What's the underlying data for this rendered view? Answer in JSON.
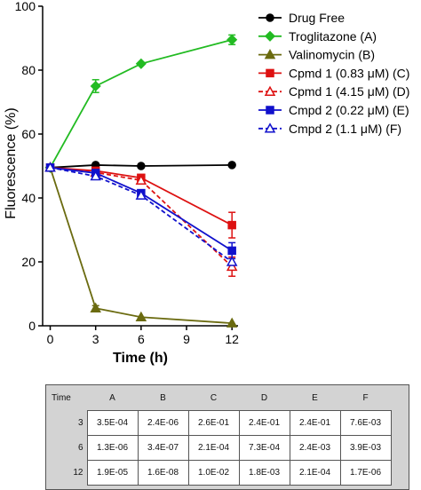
{
  "chart_data": {
    "type": "line",
    "xlabel": "Time (h)",
    "ylabel": "Fluorescence (%)",
    "x": [
      0,
      3,
      6,
      12
    ],
    "xticks": [
      0,
      3,
      6,
      9,
      12
    ],
    "xlim": [
      -0.5,
      12.4
    ],
    "ylim": [
      0,
      100
    ],
    "yticks": [
      0,
      20,
      40,
      60,
      80,
      100
    ],
    "legend_position": "top-right",
    "series": [
      {
        "name": "Drug Free",
        "values": [
          49.5,
          50.3,
          50.0,
          50.3
        ],
        "err": [
          0,
          0,
          0,
          0
        ],
        "color": "#000000",
        "marker": "circle",
        "filled": true,
        "dashed": false
      },
      {
        "name": "Troglitazone (A)",
        "values": [
          49.5,
          75.0,
          82.0,
          89.5
        ],
        "err": [
          0,
          2.0,
          0,
          1.5
        ],
        "color": "#22bb22",
        "marker": "diamond",
        "filled": true,
        "dashed": false
      },
      {
        "name": "Valinomycin (B)",
        "values": [
          49.5,
          5.5,
          2.7,
          0.8
        ],
        "err": [
          0,
          0.8,
          0,
          0
        ],
        "color": "#6b6b10",
        "marker": "triangle",
        "filled": true,
        "dashed": false
      },
      {
        "name": "Cpmd 1 (0.83 μM) (C)",
        "values": [
          49.5,
          48.5,
          46.3,
          31.5
        ],
        "err": [
          0,
          0,
          1.0,
          4.0
        ],
        "color": "#dd1111",
        "marker": "square",
        "filled": true,
        "dashed": false
      },
      {
        "name": "Cpmd 1 (4.15 μM) (D)",
        "values": [
          49.5,
          48.0,
          45.5,
          18.5
        ],
        "err": [
          0,
          0,
          0,
          3.0
        ],
        "color": "#dd1111",
        "marker": "triangle",
        "filled": false,
        "dashed": true
      },
      {
        "name": "Cmpd 2 (0.22 μM) (E)",
        "values": [
          49.5,
          47.8,
          41.5,
          23.5
        ],
        "err": [
          0,
          0,
          1.0,
          2.5
        ],
        "color": "#1111cc",
        "marker": "square",
        "filled": true,
        "dashed": false
      },
      {
        "name": "Cmpd 2 (1.1 μM) (F)",
        "values": [
          49.5,
          46.8,
          40.8,
          20.0
        ],
        "err": [
          0,
          1.0,
          0,
          0
        ],
        "color": "#1111cc",
        "marker": "triangle",
        "filled": false,
        "dashed": true
      }
    ]
  },
  "table": {
    "corner": "Time",
    "columns": [
      "A",
      "B",
      "C",
      "D",
      "E",
      "F"
    ],
    "rows": [
      {
        "time": "3",
        "cells": [
          "3.5E-04",
          "2.4E-06",
          "2.6E-01",
          "2.4E-01",
          "2.4E-01",
          "7.6E-03"
        ]
      },
      {
        "time": "6",
        "cells": [
          "1.3E-06",
          "3.4E-07",
          "2.1E-04",
          "7.3E-04",
          "2.4E-03",
          "3.9E-03"
        ]
      },
      {
        "time": "12",
        "cells": [
          "1.9E-05",
          "1.6E-08",
          "1.0E-02",
          "1.8E-03",
          "2.1E-04",
          "1.7E-06"
        ]
      }
    ]
  }
}
